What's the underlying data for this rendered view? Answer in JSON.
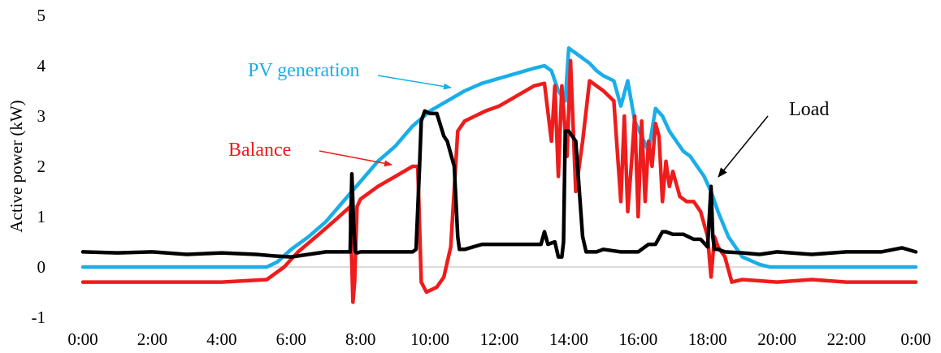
{
  "chart_data": {
    "type": "line",
    "title": "",
    "xlabel": "",
    "ylabel": "Active power (kW)",
    "ylim": [
      -1,
      5
    ],
    "yticks": [
      5,
      4,
      3,
      2,
      1,
      0,
      -1
    ],
    "xticks": [
      "0:00",
      "2:00",
      "4:00",
      "6:00",
      "8:00",
      "10:00",
      "12:00",
      "14:00",
      "16:00",
      "18:00",
      "20:00",
      "22:00",
      "0:00"
    ],
    "grid": false,
    "zero_line": true,
    "series": [
      {
        "name": "PV generation",
        "color": "#1aaee8",
        "x": [
          0,
          5.3,
          5.6,
          6,
          6.5,
          7,
          7.5,
          8,
          8.5,
          9,
          9.5,
          10,
          10.5,
          11,
          11.5,
          12,
          12.5,
          13,
          13.3,
          13.5,
          13.7,
          13.9,
          14.0,
          14.3,
          14.6,
          14.8,
          15.0,
          15.3,
          15.5,
          15.7,
          15.9,
          16.1,
          16.3,
          16.5,
          16.7,
          16.9,
          17.1,
          17.3,
          17.5,
          17.7,
          17.9,
          18.1,
          18.3,
          18.6,
          19.0,
          19.5,
          19.8,
          20,
          24
        ],
        "y": [
          0,
          0,
          0.1,
          0.35,
          0.6,
          0.9,
          1.3,
          1.7,
          2.1,
          2.4,
          2.8,
          3.1,
          3.3,
          3.5,
          3.65,
          3.75,
          3.85,
          3.95,
          4.0,
          3.9,
          3.5,
          3.3,
          4.35,
          4.2,
          4.05,
          3.9,
          3.8,
          3.7,
          3.2,
          3.7,
          2.9,
          2.6,
          2.3,
          3.15,
          3.0,
          2.7,
          2.5,
          2.3,
          2.2,
          2.0,
          1.8,
          1.5,
          1.1,
          0.6,
          0.2,
          0.05,
          0,
          0,
          0
        ]
      },
      {
        "name": "Balance",
        "color": "#ee1c1c",
        "x": [
          0,
          2,
          4,
          5.3,
          5.8,
          6.2,
          6.8,
          7.3,
          7.7,
          7.78,
          7.83,
          7.9,
          8.0,
          8.5,
          9.0,
          9.5,
          9.65,
          9.75,
          9.9,
          10.2,
          10.4,
          10.6,
          10.8,
          11.0,
          11.3,
          11.6,
          12,
          12.5,
          13,
          13.3,
          13.5,
          13.6,
          13.7,
          13.8,
          13.95,
          14.05,
          14.2,
          14.4,
          14.6,
          14.8,
          15.0,
          15.3,
          15.5,
          15.6,
          15.7,
          15.8,
          15.9,
          16.0,
          16.1,
          16.2,
          16.3,
          16.4,
          16.5,
          16.6,
          16.7,
          16.8,
          16.9,
          17.0,
          17.2,
          17.4,
          17.6,
          17.8,
          18.0,
          18.1,
          18.2,
          18.3,
          18.5,
          18.7,
          19.0,
          20,
          21,
          22,
          23,
          24
        ],
        "y": [
          -0.3,
          -0.3,
          -0.3,
          -0.25,
          0.0,
          0.3,
          0.65,
          0.95,
          1.2,
          -0.7,
          -0.3,
          1.2,
          1.35,
          1.6,
          1.8,
          2.0,
          2.0,
          -0.3,
          -0.5,
          -0.4,
          -0.2,
          0.4,
          2.7,
          2.9,
          3.0,
          3.1,
          3.2,
          3.4,
          3.6,
          3.65,
          2.5,
          3.6,
          1.8,
          3.6,
          2.2,
          4.1,
          1.5,
          2.5,
          3.7,
          3.6,
          3.5,
          3.3,
          1.3,
          3.0,
          1.1,
          2.0,
          3.0,
          1.0,
          2.9,
          1.3,
          2.5,
          2.0,
          2.85,
          2.6,
          1.3,
          2.1,
          1.6,
          1.9,
          1.4,
          1.3,
          1.3,
          1.1,
          0.6,
          -0.2,
          0.6,
          0.4,
          0.2,
          -0.3,
          -0.25,
          -0.3,
          -0.25,
          -0.3,
          -0.3,
          -0.3
        ]
      },
      {
        "name": "Load",
        "color": "#000000",
        "x": [
          0,
          1,
          2,
          3,
          4,
          5,
          5.5,
          6,
          6.5,
          7,
          7.5,
          7.7,
          7.75,
          7.8,
          7.85,
          7.9,
          8.0,
          8.5,
          9.0,
          9.5,
          9.6,
          9.7,
          9.75,
          9.85,
          10.0,
          10.2,
          10.4,
          10.5,
          10.7,
          10.8,
          10.85,
          11.0,
          11.5,
          12.0,
          12.5,
          13.0,
          13.2,
          13.3,
          13.4,
          13.6,
          13.7,
          13.8,
          13.85,
          13.9,
          14.0,
          14.2,
          14.4,
          14.5,
          14.6,
          14.8,
          15.0,
          15.5,
          16.0,
          16.3,
          16.5,
          16.7,
          16.8,
          17.0,
          17.3,
          17.6,
          17.8,
          18.0,
          18.1,
          18.15,
          18.2,
          18.3,
          18.5,
          19.0,
          19.5,
          20,
          21,
          22,
          23,
          23.6,
          24
        ],
        "y": [
          0.3,
          0.28,
          0.3,
          0.25,
          0.28,
          0.25,
          0.22,
          0.2,
          0.25,
          0.3,
          0.3,
          0.3,
          1.85,
          0.9,
          0.3,
          0.28,
          0.3,
          0.3,
          0.3,
          0.3,
          0.35,
          2.0,
          2.9,
          3.1,
          3.05,
          3.05,
          2.6,
          2.5,
          2.0,
          0.6,
          0.35,
          0.35,
          0.45,
          0.45,
          0.45,
          0.45,
          0.45,
          0.7,
          0.45,
          0.5,
          0.2,
          0.2,
          0.5,
          2.7,
          2.7,
          2.5,
          0.6,
          0.3,
          0.3,
          0.3,
          0.35,
          0.3,
          0.3,
          0.45,
          0.45,
          0.7,
          0.7,
          0.65,
          0.65,
          0.55,
          0.55,
          0.4,
          1.6,
          0.6,
          0.35,
          0.35,
          0.3,
          0.28,
          0.25,
          0.3,
          0.25,
          0.3,
          0.3,
          0.38,
          0.3
        ]
      }
    ],
    "annotations": [
      {
        "text": "PV generation",
        "color": "#1aaee8"
      },
      {
        "text": "Balance",
        "color": "#ee1c1c"
      },
      {
        "text": "Load",
        "color": "#000000"
      }
    ]
  }
}
